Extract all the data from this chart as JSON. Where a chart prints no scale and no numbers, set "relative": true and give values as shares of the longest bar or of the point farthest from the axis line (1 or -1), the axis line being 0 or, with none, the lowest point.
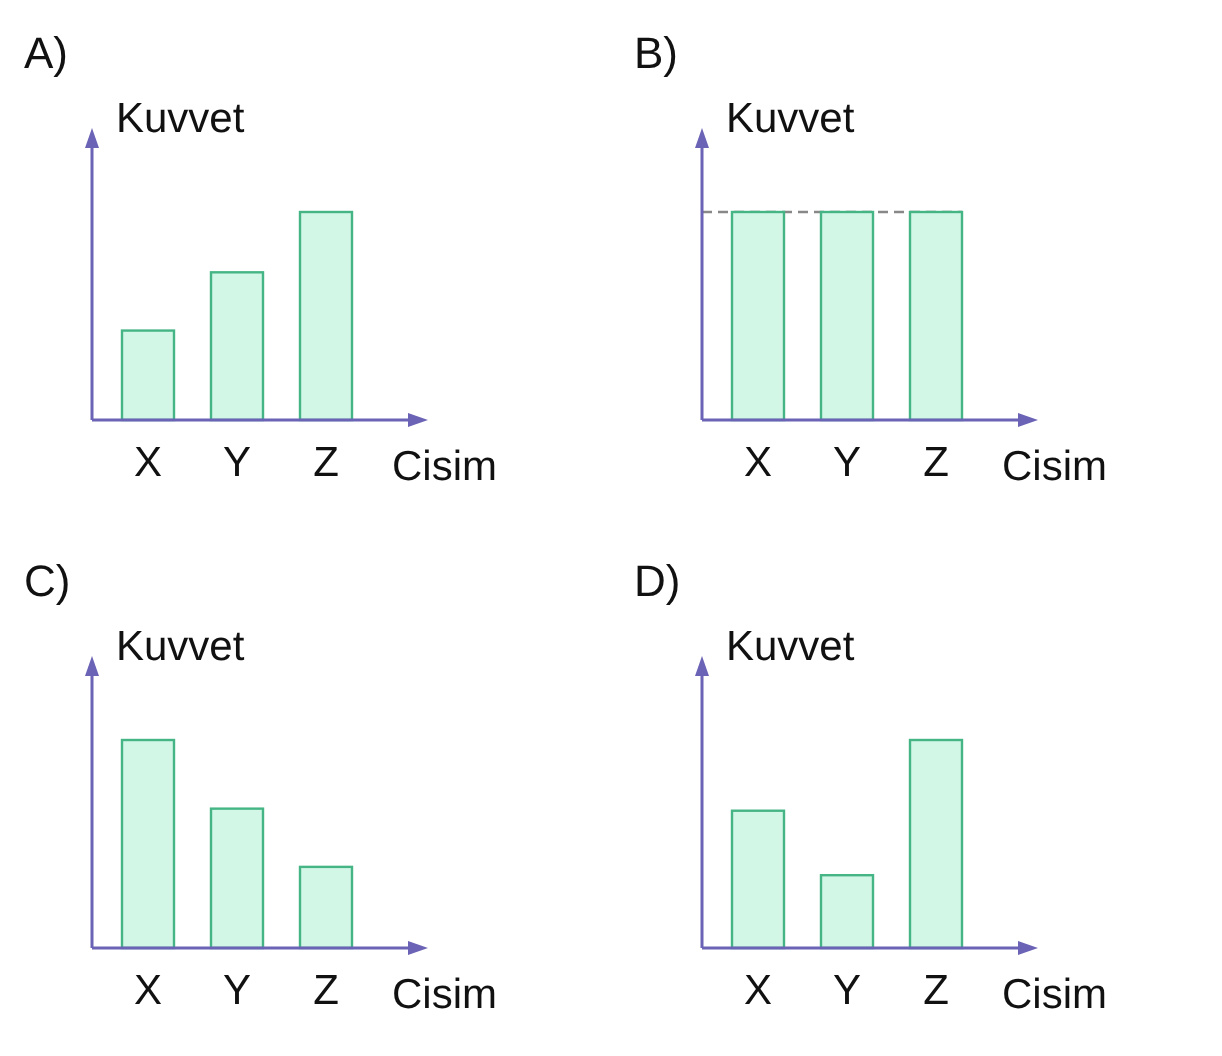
{
  "chart_data": [
    {
      "type": "bar",
      "title": "A)",
      "xlabel": "Cisim",
      "ylabel": "Kuvvet",
      "relative": true,
      "categories": [
        "X",
        "Y",
        "Z"
      ],
      "values": [
        0.43,
        0.71,
        1
      ],
      "color": "#d2f7e6"
    },
    {
      "type": "bar",
      "title": "B)",
      "xlabel": "Cisim",
      "ylabel": "Kuvvet",
      "relative": true,
      "categories": [
        "X",
        "Y",
        "Z"
      ],
      "values": [
        1,
        1,
        1
      ],
      "color": "#d2f7e6",
      "ref_lines": [
        {
          "axis": "y",
          "value": 1,
          "line_style": "dashed",
          "color": "#888888"
        }
      ]
    },
    {
      "type": "bar",
      "title": "C)",
      "xlabel": "Cisim",
      "ylabel": "Kuvvet",
      "relative": true,
      "categories": [
        "X",
        "Y",
        "Z"
      ],
      "values": [
        1,
        0.67,
        0.39
      ],
      "color": "#d2f7e6"
    },
    {
      "type": "bar",
      "title": "D)",
      "xlabel": "Cisim",
      "ylabel": "Kuvvet",
      "relative": true,
      "categories": [
        "X",
        "Y",
        "Z"
      ],
      "values": [
        0.66,
        0.35,
        1
      ],
      "color": "#d2f7e6"
    }
  ]
}
